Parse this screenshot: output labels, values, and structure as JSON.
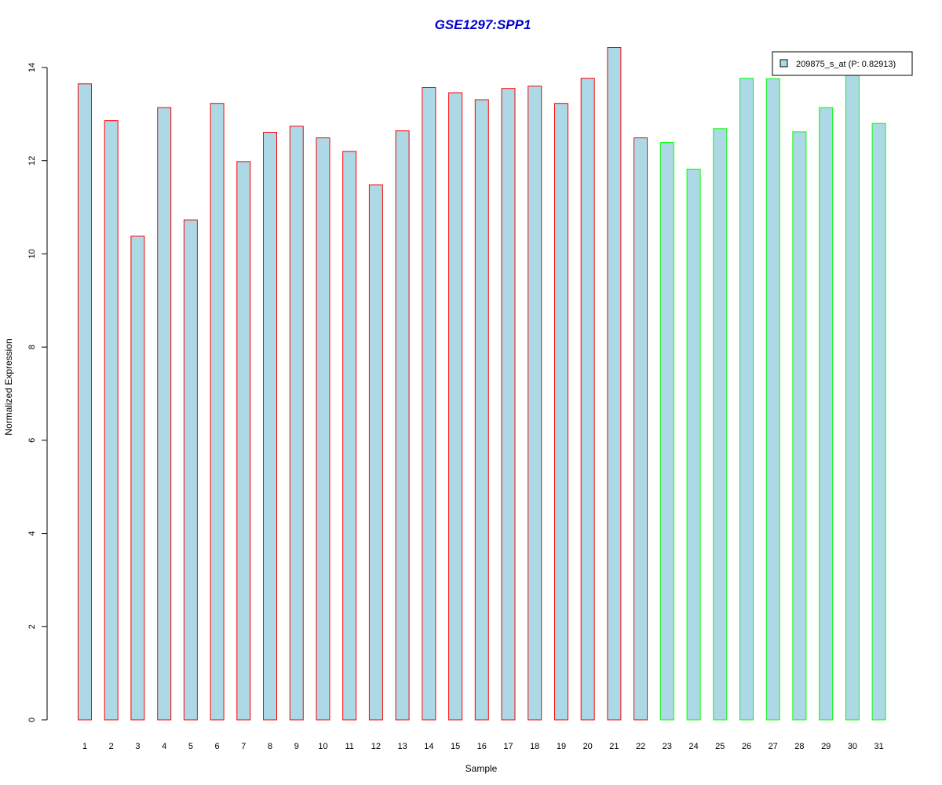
{
  "chart_data": {
    "type": "bar",
    "title": "GSE1297:SPP1",
    "xlabel": "Sample",
    "ylabel": "Normalized Expression",
    "categories": [
      "1",
      "2",
      "3",
      "4",
      "5",
      "6",
      "7",
      "8",
      "9",
      "10",
      "11",
      "12",
      "13",
      "14",
      "15",
      "16",
      "17",
      "18",
      "19",
      "20",
      "21",
      "22",
      "23",
      "24",
      "25",
      "26",
      "27",
      "28",
      "29",
      "30",
      "31"
    ],
    "series": [
      {
        "name": "209875_s_at (P: 0.82913)",
        "values": [
          13.65,
          12.86,
          10.38,
          13.14,
          10.73,
          13.23,
          11.98,
          12.61,
          12.74,
          12.49,
          12.2,
          11.48,
          12.64,
          13.57,
          13.46,
          13.31,
          13.55,
          13.6,
          13.23,
          13.77,
          14.43,
          12.49,
          12.39,
          11.82,
          12.69,
          13.77,
          13.76,
          12.62,
          13.14,
          13.84,
          12.8
        ]
      }
    ],
    "groups": [
      {
        "range": [
          1,
          22
        ],
        "border_color": "#ff0000"
      },
      {
        "range": [
          23,
          31
        ],
        "border_color": "#00ff00"
      }
    ],
    "yticks": [
      0,
      2,
      4,
      6,
      8,
      10,
      12,
      14
    ],
    "ylim": [
      0,
      14
    ],
    "grid": false,
    "legend_position": "top-right",
    "colors": {
      "bar_fill": "#add8e6",
      "title": "#0000cd",
      "axis": "#000000",
      "legend_border": "#000000"
    }
  }
}
